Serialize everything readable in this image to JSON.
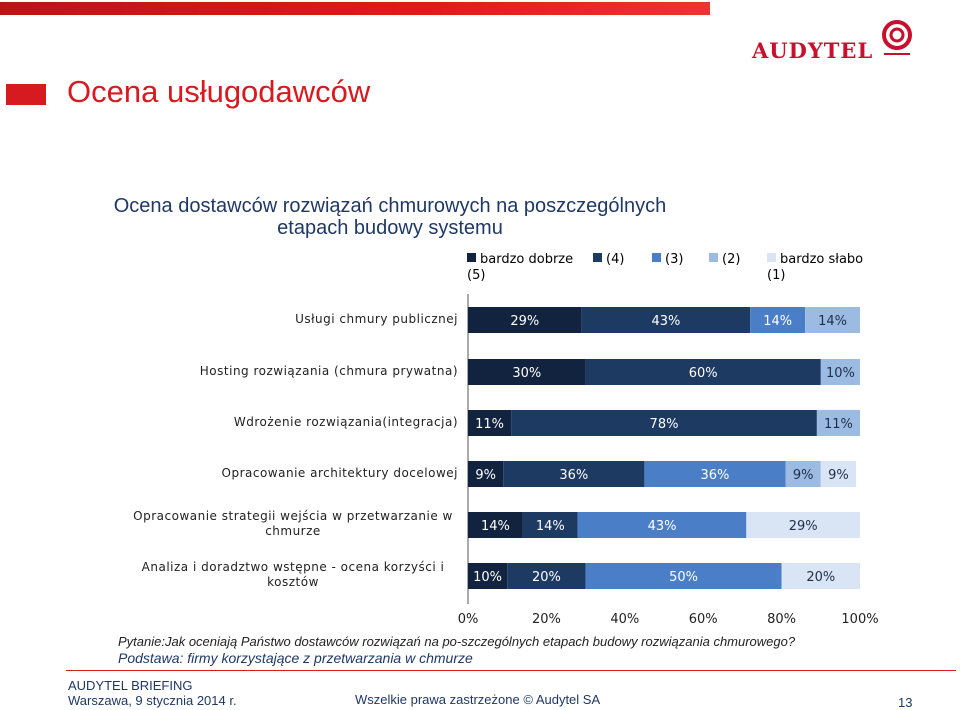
{
  "header": {
    "title": "Ocena usługodawców",
    "logo_text": "AUDYTEL"
  },
  "colors": {
    "brand_red": "#d71920",
    "navy": "#1f3864"
  },
  "chart_data": {
    "type": "bar",
    "orientation": "horizontal-stacked-100",
    "title": "Ocena dostawców rozwiązań chmurowych na poszczególnych etapach budowy systemu",
    "categories": [
      "Usługi chmury publicznej",
      "Hosting rozwiązania (chmura prywatna)",
      "Wdrożenie rozwiązania(integracja)",
      "Opracowanie architektury docelowej",
      "Opracowanie strategii wejścia w przetwarzanie w chmurze",
      "Analiza i doradztwo wstępne - ocena korzyści i kosztów"
    ],
    "series": [
      {
        "name": "bardzo dobrze (5)",
        "color": "#11233f",
        "values": [
          29,
          30,
          11,
          9,
          14,
          10
        ]
      },
      {
        "name": "(4)",
        "color": "#1d3a63",
        "values": [
          43,
          60,
          78,
          36,
          14,
          20
        ]
      },
      {
        "name": "(3)",
        "color": "#4a7ec6",
        "values": [
          14,
          0,
          0,
          36,
          43,
          50
        ]
      },
      {
        "name": "(2)",
        "color": "#9cbbe3",
        "values": [
          14,
          10,
          11,
          9,
          0,
          0
        ]
      },
      {
        "name": "bardzo słabo (1)",
        "color": "#d9e5f5",
        "values": [
          0,
          0,
          0,
          9,
          29,
          20
        ]
      }
    ],
    "xlim": [
      0,
      100
    ],
    "x_ticks": [
      "0%",
      "20%",
      "40%",
      "60%",
      "80%",
      "100%"
    ],
    "legend_position": "top-right",
    "grid": false
  },
  "question": "Pytanie:Jak oceniają Państwo dostawców rozwiązań na po-szczególnych etapach budowy rozwiązania chmurowego?",
  "basis": "Podstawa: firmy korzystające z przetwarzania w chmurze",
  "footer": {
    "brand": "AUDYTEL BRIEFING",
    "date": "Warszawa, 9 stycznia 2014 r.",
    "rights": "Wszelkie prawa zastrzeżone © Audytel SA",
    "page": "13"
  }
}
